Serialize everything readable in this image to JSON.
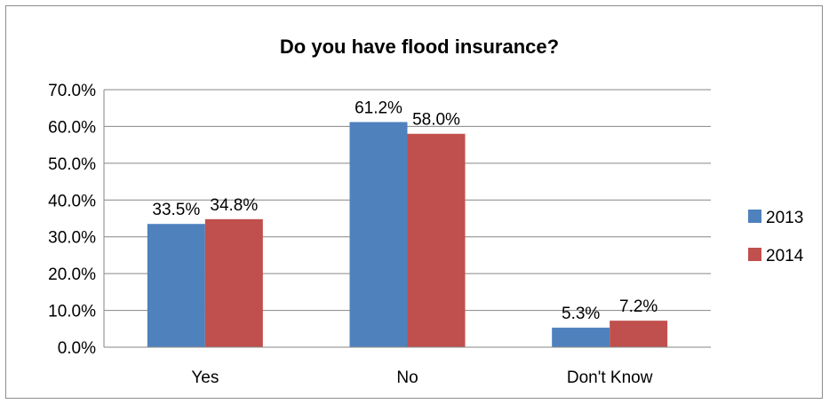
{
  "chart_data": {
    "type": "bar",
    "title": "Do you have flood insurance?",
    "categories": [
      "Yes",
      "No",
      "Don't Know"
    ],
    "series": [
      {
        "name": "2013",
        "values": [
          33.5,
          61.2,
          5.3
        ],
        "data_labels": [
          "33.5%",
          "61.2%",
          "5.3%"
        ],
        "color": "#4F81BD"
      },
      {
        "name": "2014",
        "values": [
          34.8,
          58.0,
          7.2
        ],
        "data_labels": [
          "34.8%",
          "58.0%",
          "7.2%"
        ],
        "color": "#C0504D"
      }
    ],
    "ylim": [
      0,
      70
    ],
    "yticks": [
      0,
      10,
      20,
      30,
      40,
      50,
      60,
      70
    ],
    "ytick_labels": [
      "0.0%",
      "10.0%",
      "20.0%",
      "30.0%",
      "40.0%",
      "50.0%",
      "60.0%",
      "70.0%"
    ],
    "xlabel": "",
    "ylabel": "",
    "grid": true,
    "legend_position": "right"
  }
}
